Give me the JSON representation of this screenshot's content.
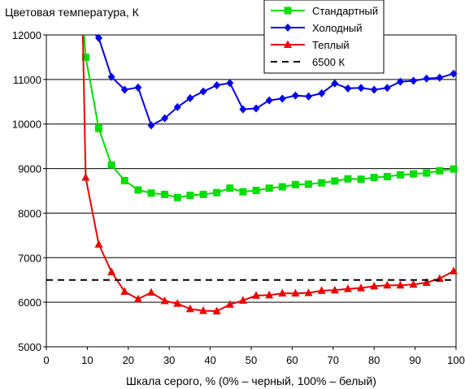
{
  "chart_data": {
    "type": "line",
    "title": "Цветовая температура, К",
    "xlabel": "Шкала серого, % (0% – черный, 100% – белый)",
    "ylabel": "",
    "xlim": [
      0,
      100
    ],
    "ylim": [
      5000,
      12000
    ],
    "x_ticks": [
      "0",
      "10",
      "20",
      "30",
      "40",
      "50",
      "60",
      "70",
      "80",
      "90",
      "100"
    ],
    "y_ticks": [
      "5000",
      "6000",
      "7000",
      "8000",
      "9000",
      "10000",
      "11000",
      "12000"
    ],
    "grid": "horizontal",
    "legend_position": "top-right",
    "series": [
      {
        "name": "Стандартный",
        "color": "#00dd00",
        "marker": "square",
        "x": [
          9.2,
          9.6,
          12.8,
          15.9,
          19.1,
          22.4,
          25.6,
          28.9,
          32.0,
          35.1,
          38.3,
          41.6,
          44.8,
          48.0,
          51.2,
          54.4,
          57.6,
          60.8,
          64.0,
          67.2,
          70.4,
          73.6,
          76.8,
          80.0,
          83.2,
          86.4,
          89.6,
          92.8,
          96.0,
          99.4
        ],
        "y": [
          12000,
          11500,
          9900,
          9080,
          8730,
          8520,
          8450,
          8420,
          8350,
          8400,
          8420,
          8460,
          8560,
          8480,
          8510,
          8560,
          8590,
          8640,
          8650,
          8680,
          8720,
          8770,
          8760,
          8800,
          8820,
          8860,
          8880,
          8900,
          8950,
          8990
        ]
      },
      {
        "name": "Холодный",
        "color": "#0000ee",
        "marker": "diamond",
        "x": [
          12.0,
          12.8,
          15.9,
          19.1,
          22.4,
          25.6,
          28.9,
          32.0,
          35.1,
          38.3,
          41.6,
          44.8,
          48.0,
          51.2,
          54.4,
          57.6,
          60.8,
          64.0,
          67.2,
          70.4,
          73.6,
          76.8,
          80.0,
          83.2,
          86.4,
          89.6,
          92.8,
          96.0,
          99.4
        ],
        "y": [
          12000,
          11930,
          11060,
          10770,
          10820,
          9970,
          10130,
          10380,
          10580,
          10730,
          10870,
          10920,
          10330,
          10350,
          10530,
          10570,
          10640,
          10620,
          10690,
          10910,
          10800,
          10810,
          10770,
          10810,
          10950,
          10970,
          11020,
          11040,
          11130
        ]
      },
      {
        "name": "Теплый",
        "color": "#ee0000",
        "marker": "triangle",
        "x": [
          8.9,
          9.6,
          12.8,
          15.9,
          19.1,
          22.4,
          25.6,
          28.9,
          32.0,
          35.1,
          38.3,
          41.6,
          44.8,
          48.0,
          51.2,
          54.4,
          57.6,
          60.8,
          64.0,
          67.2,
          70.4,
          73.6,
          76.8,
          80.0,
          83.2,
          86.4,
          89.6,
          92.8,
          96.0,
          99.4
        ],
        "y": [
          12000,
          8800,
          7300,
          6680,
          6240,
          6070,
          6220,
          6030,
          5970,
          5850,
          5810,
          5800,
          5950,
          6040,
          6150,
          6160,
          6200,
          6200,
          6210,
          6260,
          6270,
          6300,
          6320,
          6360,
          6380,
          6380,
          6400,
          6440,
          6530,
          6700
        ]
      },
      {
        "name": "6500 К",
        "color": "#000000",
        "style": "dashed",
        "x": [
          0,
          100
        ],
        "y": [
          6500,
          6500
        ]
      }
    ]
  }
}
